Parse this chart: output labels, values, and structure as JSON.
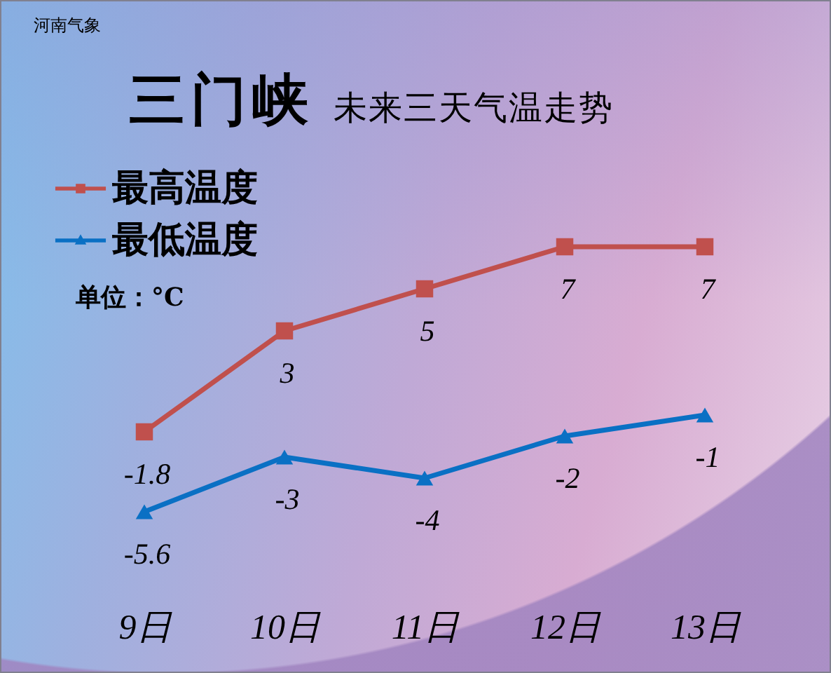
{
  "chart_data": {
    "type": "line",
    "title": "三门峡",
    "subtitle": "未来三天气温走势",
    "categories": [
      "9日",
      "10日",
      "11日",
      "12日",
      "13日"
    ],
    "series": [
      {
        "name": "最高温度",
        "color": "#c0504d",
        "marker": "square",
        "values": [
          -1.8,
          3,
          5,
          7,
          7
        ]
      },
      {
        "name": "最低温度",
        "color": "#0a70c4",
        "marker": "triangle",
        "values": [
          -5.6,
          -3,
          -4,
          -2,
          -1
        ]
      }
    ],
    "data_labels": true,
    "legend": "top left",
    "tick_labels": "x",
    "annotations": [
      "河南气象",
      "单位：°C"
    ]
  }
}
